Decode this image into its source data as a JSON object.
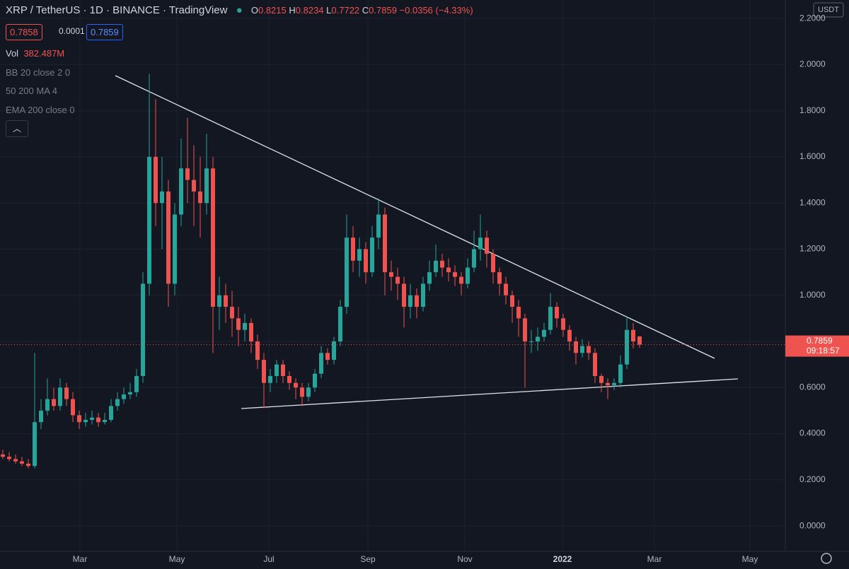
{
  "header": {
    "symbol": "XRP / TetherUS · 1D · BINANCE · TradingView",
    "open_label": "O",
    "open": 0.8215,
    "high_label": "H",
    "high": 0.8234,
    "low_label": "L",
    "low": 0.7722,
    "close_label": "C",
    "close": 0.7859,
    "change": {
      "value": -0.0356,
      "label": "−0.0356"
    },
    "change_pct": {
      "value": -4.33,
      "label": "(−4.33%)"
    }
  },
  "toolbar": {
    "sell": 0.7858,
    "spread": 0.0001,
    "buy": 0.7859
  },
  "volume": {
    "label": "Vol",
    "value": {
      "value": 382487000,
      "label": "382.487M"
    }
  },
  "indicators": [
    "BB 20 close 2 0",
    "50 200 MA 4",
    "EMA 200 close 0"
  ],
  "chart_data": {
    "type": "candlestick",
    "currency": "USDT",
    "up_color": "#26a69a",
    "down_color": "#ef5350",
    "grid": true,
    "ylim": [
      -0.11,
      2.28
    ],
    "yticks": [
      {
        "value": 0,
        "label": "0.0000"
      },
      {
        "value": 0.2,
        "label": "0.2000"
      },
      {
        "value": 0.4,
        "label": "0.4000"
      },
      {
        "value": 0.6,
        "label": "0.6000"
      },
      {
        "value": 0.8,
        "label": "0.8000"
      },
      {
        "value": 1,
        "label": "1.0000"
      },
      {
        "value": 1.2,
        "label": "1.2000"
      },
      {
        "value": 1.4,
        "label": "1.4000"
      },
      {
        "value": 1.6,
        "label": "1.6000"
      },
      {
        "value": 1.8,
        "label": "1.8000"
      },
      {
        "value": 2,
        "label": "2.0000"
      },
      {
        "value": 2.2,
        "label": "2.2000"
      }
    ],
    "x_labels": [
      "Mar",
      "May",
      "Jul",
      "Sep",
      "Nov",
      "2022",
      "Mar",
      "May"
    ],
    "last_price": {
      "value": 0.7859,
      "label": "0.7859"
    },
    "countdown": "09:18:57",
    "ohlc": [
      [
        0.31,
        0.33,
        0.29,
        0.3
      ],
      [
        0.3,
        0.32,
        0.28,
        0.29
      ],
      [
        0.29,
        0.31,
        0.27,
        0.28
      ],
      [
        0.28,
        0.3,
        0.26,
        0.27
      ],
      [
        0.27,
        0.29,
        0.25,
        0.26
      ],
      [
        0.26,
        0.75,
        0.25,
        0.45
      ],
      [
        0.45,
        0.55,
        0.42,
        0.5
      ],
      [
        0.5,
        0.64,
        0.48,
        0.55
      ],
      [
        0.55,
        0.6,
        0.5,
        0.52
      ],
      [
        0.52,
        0.64,
        0.5,
        0.6
      ],
      [
        0.6,
        0.62,
        0.52,
        0.55
      ],
      [
        0.55,
        0.58,
        0.45,
        0.48
      ],
      [
        0.48,
        0.5,
        0.42,
        0.45
      ],
      [
        0.45,
        0.49,
        0.43,
        0.46
      ],
      [
        0.46,
        0.5,
        0.44,
        0.47
      ],
      [
        0.47,
        0.49,
        0.43,
        0.45
      ],
      [
        0.45,
        0.49,
        0.44,
        0.46
      ],
      [
        0.46,
        0.55,
        0.45,
        0.52
      ],
      [
        0.52,
        0.58,
        0.5,
        0.55
      ],
      [
        0.55,
        0.6,
        0.53,
        0.57
      ],
      [
        0.57,
        0.62,
        0.55,
        0.58
      ],
      [
        0.58,
        0.68,
        0.56,
        0.65
      ],
      [
        0.65,
        1.1,
        0.62,
        1.05
      ],
      [
        1.05,
        1.96,
        1.0,
        1.6
      ],
      [
        1.6,
        1.85,
        1.3,
        1.4
      ],
      [
        1.4,
        1.6,
        1.2,
        1.45
      ],
      [
        1.45,
        1.5,
        0.95,
        1.05
      ],
      [
        1.05,
        1.4,
        1.0,
        1.35
      ],
      [
        1.35,
        1.68,
        1.3,
        1.55
      ],
      [
        1.55,
        1.77,
        1.4,
        1.5
      ],
      [
        1.5,
        1.65,
        1.3,
        1.45
      ],
      [
        1.45,
        1.6,
        1.25,
        1.4
      ],
      [
        1.4,
        1.7,
        1.35,
        1.55
      ],
      [
        1.55,
        1.6,
        0.75,
        0.95
      ],
      [
        0.95,
        1.08,
        0.85,
        1.0
      ],
      [
        1.0,
        1.05,
        0.88,
        0.95
      ],
      [
        0.95,
        1.02,
        0.82,
        0.9
      ],
      [
        0.9,
        0.95,
        0.78,
        0.85
      ],
      [
        0.85,
        0.92,
        0.8,
        0.88
      ],
      [
        0.88,
        0.9,
        0.75,
        0.8
      ],
      [
        0.8,
        0.83,
        0.68,
        0.72
      ],
      [
        0.72,
        0.75,
        0.51,
        0.62
      ],
      [
        0.62,
        0.68,
        0.58,
        0.65
      ],
      [
        0.65,
        0.72,
        0.62,
        0.7
      ],
      [
        0.7,
        0.72,
        0.62,
        0.65
      ],
      [
        0.65,
        0.67,
        0.59,
        0.62
      ],
      [
        0.62,
        0.64,
        0.55,
        0.6
      ],
      [
        0.6,
        0.62,
        0.52,
        0.56
      ],
      [
        0.56,
        0.62,
        0.54,
        0.6
      ],
      [
        0.6,
        0.68,
        0.58,
        0.66
      ],
      [
        0.66,
        0.78,
        0.64,
        0.75
      ],
      [
        0.75,
        0.77,
        0.7,
        0.72
      ],
      [
        0.72,
        0.82,
        0.7,
        0.8
      ],
      [
        0.8,
        0.98,
        0.78,
        0.95
      ],
      [
        0.95,
        1.35,
        0.92,
        1.25
      ],
      [
        1.25,
        1.3,
        1.1,
        1.15
      ],
      [
        1.15,
        1.25,
        1.08,
        1.2
      ],
      [
        1.2,
        1.23,
        1.05,
        1.1
      ],
      [
        1.1,
        1.3,
        1.08,
        1.25
      ],
      [
        1.25,
        1.42,
        1.2,
        1.35
      ],
      [
        1.35,
        1.38,
        1.0,
        1.1
      ],
      [
        1.1,
        1.15,
        1.02,
        1.08
      ],
      [
        1.08,
        1.12,
        0.98,
        1.05
      ],
      [
        1.05,
        1.08,
        0.86,
        0.95
      ],
      [
        0.95,
        1.05,
        0.9,
        1.0
      ],
      [
        1.0,
        1.03,
        0.9,
        0.95
      ],
      [
        0.95,
        1.08,
        0.93,
        1.05
      ],
      [
        1.05,
        1.15,
        1.02,
        1.1
      ],
      [
        1.1,
        1.22,
        1.08,
        1.15
      ],
      [
        1.15,
        1.18,
        1.08,
        1.12
      ],
      [
        1.12,
        1.16,
        1.06,
        1.1
      ],
      [
        1.1,
        1.13,
        1.04,
        1.08
      ],
      [
        1.08,
        1.1,
        1.0,
        1.05
      ],
      [
        1.05,
        1.16,
        1.03,
        1.12
      ],
      [
        1.12,
        1.28,
        1.1,
        1.2
      ],
      [
        1.2,
        1.35,
        1.15,
        1.25
      ],
      [
        1.25,
        1.28,
        1.12,
        1.18
      ],
      [
        1.18,
        1.2,
        1.05,
        1.1
      ],
      [
        1.1,
        1.12,
        1.0,
        1.05
      ],
      [
        1.05,
        1.08,
        0.96,
        1.0
      ],
      [
        1.0,
        1.02,
        0.88,
        0.95
      ],
      [
        0.95,
        0.98,
        0.82,
        0.9
      ],
      [
        0.9,
        0.92,
        0.6,
        0.8
      ],
      [
        0.8,
        0.85,
        0.75,
        0.8
      ],
      [
        0.8,
        0.86,
        0.76,
        0.82
      ],
      [
        0.82,
        0.88,
        0.8,
        0.85
      ],
      [
        0.85,
        1.01,
        0.83,
        0.95
      ],
      [
        0.95,
        0.97,
        0.86,
        0.9
      ],
      [
        0.9,
        0.92,
        0.82,
        0.85
      ],
      [
        0.85,
        0.87,
        0.76,
        0.8
      ],
      [
        0.8,
        0.82,
        0.7,
        0.75
      ],
      [
        0.75,
        0.81,
        0.73,
        0.78
      ],
      [
        0.78,
        0.8,
        0.72,
        0.75
      ],
      [
        0.75,
        0.77,
        0.62,
        0.65
      ],
      [
        0.65,
        0.66,
        0.58,
        0.62
      ],
      [
        0.62,
        0.64,
        0.55,
        0.61
      ],
      [
        0.61,
        0.64,
        0.59,
        0.62
      ],
      [
        0.62,
        0.74,
        0.6,
        0.7
      ],
      [
        0.7,
        0.91,
        0.68,
        0.85
      ],
      [
        0.85,
        0.88,
        0.77,
        0.8
      ],
      [
        0.8215,
        0.8234,
        0.7722,
        0.7859
      ]
    ]
  }
}
